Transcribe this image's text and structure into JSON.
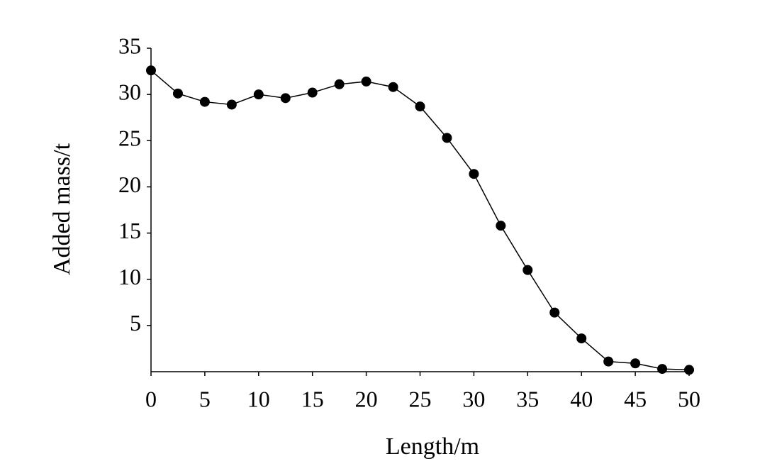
{
  "chart_data": {
    "type": "line",
    "x_label": "Length/m",
    "y_label": "Added mass/t",
    "x": [
      0,
      2.5,
      5,
      7.5,
      10,
      12.5,
      15,
      17.5,
      20,
      22.5,
      25,
      27.5,
      30,
      32.5,
      35,
      37.5,
      40,
      42.5,
      45,
      47.5,
      50
    ],
    "y": [
      32.6,
      30.1,
      29.2,
      28.9,
      30.0,
      29.6,
      30.2,
      31.1,
      31.4,
      30.8,
      28.7,
      25.3,
      21.4,
      15.8,
      11.0,
      6.4,
      3.6,
      1.1,
      0.9,
      0.3,
      0.2
    ],
    "color": "#000000",
    "xlim": [
      0,
      50
    ],
    "xticks": [
      0,
      5,
      10,
      15,
      20,
      25,
      30,
      35,
      40,
      45,
      50
    ],
    "ylim": [
      0,
      35
    ],
    "yticks": [
      5,
      10,
      15,
      20,
      25,
      30,
      35
    ],
    "grid": false
  }
}
